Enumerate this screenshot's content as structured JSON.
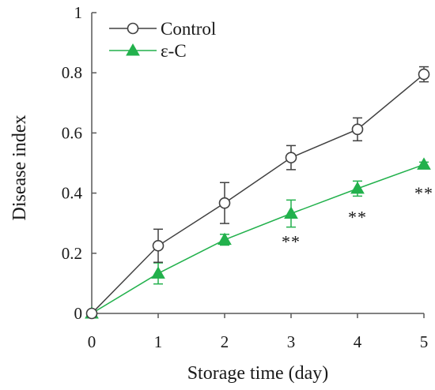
{
  "chart_data": {
    "type": "line",
    "xlabel": "Storage time (day)",
    "ylabel": "Disease index",
    "xlim": [
      0,
      5
    ],
    "ylim": [
      0,
      1
    ],
    "x_ticks": [
      "0",
      "1",
      "2",
      "3",
      "4",
      "5"
    ],
    "y_ticks": [
      "0",
      "0.2",
      "0.4",
      "0.6",
      "0.8",
      "1"
    ],
    "grid": false,
    "legend_position": "top-left",
    "series": [
      {
        "name": "Control",
        "marker": "open-circle",
        "color": "#404040",
        "x": [
          0,
          1,
          2,
          3,
          4,
          5
        ],
        "y": [
          0,
          0.225,
          0.367,
          0.518,
          0.612,
          0.795
        ],
        "err": [
          0,
          0.055,
          0.068,
          0.04,
          0.038,
          0.025
        ]
      },
      {
        "name": "ε-C",
        "marker": "filled-triangle",
        "color": "#22b14c",
        "x": [
          0,
          1,
          2,
          3,
          4,
          5
        ],
        "y": [
          0,
          0.133,
          0.245,
          0.332,
          0.415,
          0.495
        ],
        "err": [
          0,
          0.035,
          0.018,
          0.045,
          0.025,
          0.008
        ]
      }
    ],
    "annotations": [
      {
        "x": 3,
        "y": 0.24,
        "text": "**"
      },
      {
        "x": 4,
        "y": 0.322,
        "text": "**"
      },
      {
        "x": 5,
        "y": 0.402,
        "text": "**"
      }
    ]
  }
}
